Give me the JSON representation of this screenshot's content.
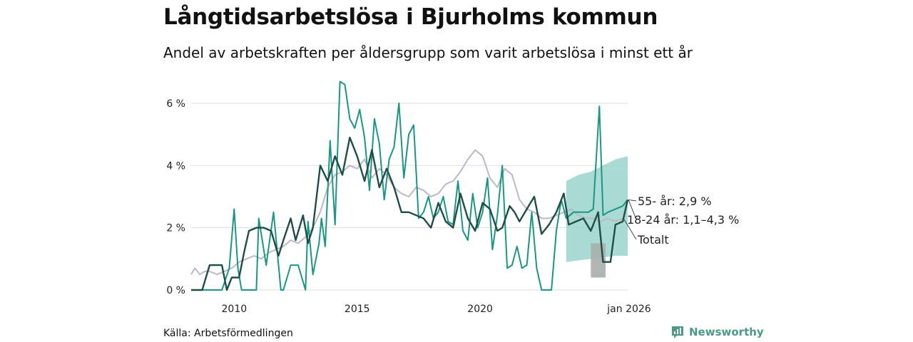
{
  "colors": {
    "series_55": "#1b9683",
    "series_18_24": "#1f4d47",
    "series_total": "#bcb8c8",
    "band_55": "#9ad3cb",
    "band_18_24": "#a9aeac",
    "grid": "#dddddd"
  },
  "chart_data": {
    "type": "line",
    "title": "Långtidsarbetslösa i Bjurholms kommun",
    "subtitle": "Andel av arbetskraften per åldersgrupp som varit arbetslösa i minst ett år",
    "ylim": [
      0,
      6.8
    ],
    "xlim": [
      2008.25,
      2026.0
    ],
    "y_ticks": [
      0,
      2,
      4,
      6
    ],
    "y_tick_labels": [
      "0 %",
      "2 %",
      "4 %",
      "6 %"
    ],
    "x_ticks": [
      2010,
      2015,
      2020,
      2026
    ],
    "x_tick_labels": [
      "2010",
      "2015",
      "2020",
      "jan 2026"
    ],
    "series": [
      {
        "name": "Totalt",
        "label": "Totalt",
        "color": "#bcb8c8",
        "x": [
          2008.25,
          2008.4,
          2008.6,
          2008.8,
          2009.0,
          2009.3,
          2009.6,
          2009.9,
          2010.2,
          2010.5,
          2010.8,
          2011.1,
          2011.4,
          2011.7,
          2012.0,
          2012.3,
          2012.6,
          2012.9,
          2013.2,
          2013.5,
          2013.8,
          2014.1,
          2014.4,
          2014.7,
          2015.0,
          2015.3,
          2015.6,
          2015.9,
          2016.2,
          2016.5,
          2016.8,
          2017.1,
          2017.4,
          2017.7,
          2018.0,
          2018.3,
          2018.6,
          2018.9,
          2019.2,
          2019.5,
          2019.8,
          2020.1,
          2020.4,
          2020.7,
          2021.0,
          2021.3,
          2021.6,
          2021.9,
          2022.2,
          2022.5,
          2022.8,
          2023.1,
          2023.4,
          2023.7,
          2024.0,
          2024.3,
          2024.6,
          2024.9,
          2025.2,
          2025.5,
          2025.8
        ],
        "values": [
          0.5,
          0.7,
          0.5,
          0.6,
          0.6,
          0.5,
          0.6,
          0.7,
          0.9,
          1.0,
          1.1,
          1.0,
          1.2,
          1.3,
          1.4,
          1.6,
          1.5,
          1.7,
          2.0,
          2.5,
          3.3,
          3.7,
          3.8,
          4.0,
          3.9,
          4.2,
          3.6,
          3.9,
          3.7,
          3.3,
          3.1,
          3.0,
          3.3,
          3.2,
          3.0,
          3.1,
          3.4,
          3.5,
          3.8,
          4.2,
          4.5,
          4.3,
          3.6,
          3.3,
          3.9,
          3.7,
          2.9,
          2.6,
          2.5,
          2.3,
          2.3,
          2.4,
          2.5,
          2.6,
          2.4,
          2.3,
          2.3,
          2.2,
          2.3,
          2.2,
          2.3
        ]
      },
      {
        "name": "18-24 år",
        "label": "18-24 år: 1,1–4,3 %",
        "color": "#1b9683",
        "x": [
          2008.25,
          2008.5,
          2009.0,
          2009.5,
          2009.8,
          2010.0,
          2010.15,
          2010.3,
          2010.6,
          2010.9,
          2011.0,
          2011.3,
          2011.6,
          2011.9,
          2012.0,
          2012.3,
          2012.6,
          2012.9,
          2013.0,
          2013.2,
          2013.45,
          2013.55,
          2013.7,
          2013.9,
          2014.1,
          2014.3,
          2014.5,
          2014.7,
          2014.9,
          2015.1,
          2015.3,
          2015.5,
          2015.7,
          2015.9,
          2016.1,
          2016.3,
          2016.5,
          2016.7,
          2016.9,
          2017.1,
          2017.3,
          2017.5,
          2017.7,
          2017.9,
          2018.1,
          2018.3,
          2018.5,
          2018.7,
          2018.9,
          2019.1,
          2019.3,
          2019.5,
          2019.7,
          2019.9,
          2020.1,
          2020.3,
          2020.5,
          2020.7,
          2020.9,
          2021.1,
          2021.3,
          2021.5,
          2021.7,
          2021.9,
          2022.1,
          2022.3,
          2022.5,
          2022.7,
          2022.9,
          2023.1,
          2023.3,
          2023.5,
          2023.8,
          2024.1,
          2024.4,
          2024.6,
          2024.85,
          2025.0,
          2025.2,
          2025.5,
          2025.8,
          2026.0
        ],
        "values": [
          0,
          0,
          0,
          0,
          0.7,
          2.6,
          0.7,
          0,
          0,
          0,
          2.3,
          0.8,
          2.5,
          0,
          0,
          0.8,
          0.8,
          0,
          2.2,
          0.5,
          1.5,
          2.3,
          1.4,
          4.8,
          2.1,
          6.7,
          6.6,
          5.5,
          5.2,
          5.8,
          4.9,
          3.2,
          5.5,
          4.7,
          2.9,
          4.2,
          4.6,
          6.0,
          3.6,
          5.0,
          5.3,
          2.3,
          2.5,
          3.0,
          2.3,
          2.5,
          3.0,
          2.2,
          2.1,
          3.5,
          1.9,
          1.6,
          3.1,
          2.0,
          2.5,
          3.6,
          1.3,
          2.4,
          4.0,
          0.7,
          0.8,
          1.4,
          0.7,
          0.8,
          2.5,
          0.7,
          0,
          0,
          0,
          1.9,
          2.9,
          2.3,
          2.5,
          2.5,
          2.5,
          2.6,
          5.9,
          2.4,
          2.5,
          2.6,
          2.7,
          2.9
        ]
      },
      {
        "name": "55- år",
        "label": "55- år: 2,9 %",
        "color": "#1f4d47",
        "x": [
          2008.25,
          2008.7,
          2009.0,
          2009.3,
          2009.5,
          2009.7,
          2009.9,
          2010.2,
          2010.4,
          2010.6,
          2010.9,
          2011.2,
          2011.5,
          2011.8,
          2012.0,
          2012.3,
          2012.5,
          2012.8,
          2013.0,
          2013.2,
          2013.5,
          2013.8,
          2014.1,
          2014.4,
          2014.7,
          2015.0,
          2015.3,
          2015.6,
          2015.9,
          2016.2,
          2016.5,
          2016.8,
          2017.1,
          2017.4,
          2017.7,
          2018.0,
          2018.3,
          2018.6,
          2018.9,
          2019.2,
          2019.5,
          2019.8,
          2020.1,
          2020.4,
          2020.7,
          2020.9,
          2021.2,
          2021.4,
          2021.6,
          2021.9,
          2022.2,
          2022.5,
          2022.8,
          2023.1,
          2023.4,
          2023.6,
          2023.9,
          2024.2,
          2024.5,
          2024.8,
          2025.0,
          2025.3,
          2025.5,
          2025.8,
          2026.0
        ],
        "values": [
          0,
          0,
          0.8,
          0.8,
          0.8,
          0,
          0.4,
          0.4,
          1.2,
          1.9,
          2.0,
          2.0,
          1.9,
          1.1,
          1.6,
          2.3,
          1.6,
          2.4,
          1.5,
          2.0,
          4.0,
          3.5,
          4.3,
          3.7,
          4.9,
          4.3,
          3.5,
          4.5,
          3.3,
          3.9,
          3.3,
          2.5,
          2.5,
          2.4,
          2.3,
          2.0,
          2.8,
          2.2,
          2.0,
          3.1,
          2.3,
          1.9,
          2.8,
          2.6,
          1.9,
          2.0,
          2.7,
          2.5,
          2.2,
          2.6,
          3.0,
          1.8,
          2.1,
          2.5,
          3.1,
          2.1,
          2.2,
          2.3,
          1.9,
          2.5,
          0.9,
          0.9,
          2.1,
          2.2,
          2.9
        ]
      }
    ],
    "bands": [
      {
        "name": "18-24 år osäkerhet",
        "x": [
          2023.5,
          2024.0,
          2024.5,
          2025.0,
          2025.5,
          2026.0
        ],
        "low": [
          0.9,
          0.95,
          1.0,
          1.05,
          1.1,
          1.1
        ],
        "high": [
          3.5,
          3.7,
          3.8,
          4.0,
          4.2,
          4.3
        ]
      },
      {
        "name": "55- år osäkerhet",
        "x": [
          2024.5,
          2025.1
        ],
        "low": [
          0.4,
          0.4
        ],
        "high": [
          1.5,
          1.5
        ]
      }
    ]
  },
  "source": "Källa: Arbetsförmedlingen",
  "brand": "Newsworthy"
}
